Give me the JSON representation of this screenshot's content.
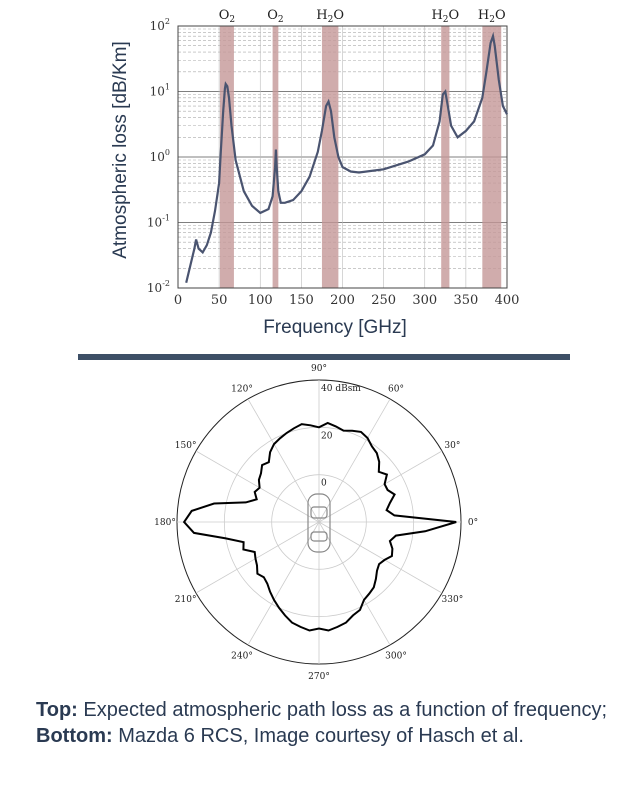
{
  "chart_data": [
    {
      "type": "line",
      "ylabel": "Atmospheric loss [dB/Km]",
      "xlabel": "Frequency [GHz]",
      "xlim": [
        0,
        400
      ],
      "ylim": [
        0.01,
        100
      ],
      "yscale": "log",
      "grid": true,
      "x_ticks": [
        "0",
        "50",
        "100",
        "150",
        "200",
        "250",
        "300",
        "350",
        "400"
      ],
      "x_tick_values": [
        0,
        50,
        100,
        150,
        200,
        250,
        300,
        350,
        400
      ],
      "y_ticks": [
        {
          "base": "10",
          "exp": "-2",
          "value": 0.01
        },
        {
          "base": "10",
          "exp": "-1",
          "value": 0.1
        },
        {
          "base": "10",
          "exp": "0",
          "value": 1
        },
        {
          "base": "10",
          "exp": "1",
          "value": 10
        },
        {
          "base": "10",
          "exp": "2",
          "value": 100
        }
      ],
      "bands": [
        {
          "label": "O",
          "sub": "2",
          "suffix": "",
          "from": 51,
          "to": 68
        },
        {
          "label": "O",
          "sub": "2",
          "suffix": "",
          "from": 115,
          "to": 122
        },
        {
          "label": "H",
          "sub": "2",
          "suffix": "O",
          "from": 175,
          "to": 195
        },
        {
          "label": "H",
          "sub": "2",
          "suffix": "O",
          "from": 320,
          "to": 330
        },
        {
          "label": "H",
          "sub": "2",
          "suffix": "O",
          "from": 370,
          "to": 393
        }
      ],
      "band_color": "#c49797",
      "line_color": "#4a5470",
      "series": [
        {
          "x": [
            10,
            15,
            20,
            22,
            25,
            30,
            35,
            40,
            45,
            50,
            52,
            55,
            57,
            58,
            60,
            62,
            65,
            70,
            80,
            90,
            100,
            110,
            115,
            118,
            119,
            120,
            122,
            125,
            130,
            140,
            150,
            160,
            170,
            175,
            180,
            183,
            186,
            190,
            195,
            200,
            210,
            220,
            250,
            280,
            300,
            310,
            318,
            322,
            325,
            328,
            332,
            340,
            350,
            360,
            370,
            375,
            380,
            383,
            385,
            390,
            395,
            400
          ],
          "y": [
            0.012,
            0.022,
            0.04,
            0.055,
            0.04,
            0.035,
            0.045,
            0.07,
            0.15,
            0.4,
            1.2,
            5,
            11,
            13,
            12,
            8,
            3,
            0.9,
            0.3,
            0.18,
            0.14,
            0.16,
            0.25,
            0.7,
            1.3,
            0.7,
            0.3,
            0.2,
            0.2,
            0.22,
            0.3,
            0.5,
            1.2,
            2.5,
            6,
            7,
            5,
            2,
            1,
            0.7,
            0.6,
            0.58,
            0.65,
            0.85,
            1.1,
            1.5,
            3.5,
            9,
            10,
            6,
            3,
            2,
            2.5,
            3.5,
            8,
            20,
            55,
            70,
            50,
            15,
            6,
            4.5
          ]
        }
      ]
    },
    {
      "type": "polar",
      "angle_labels": [
        {
          "deg": 0,
          "text": "0°"
        },
        {
          "deg": 30,
          "text": "30°"
        },
        {
          "deg": 60,
          "text": "60°"
        },
        {
          "deg": 90,
          "text": "90°"
        },
        {
          "deg": 120,
          "text": "120°"
        },
        {
          "deg": 150,
          "text": "150°"
        },
        {
          "deg": 180,
          "text": "180°"
        },
        {
          "deg": 210,
          "text": "210°"
        },
        {
          "deg": 240,
          "text": "240°"
        },
        {
          "deg": 270,
          "text": "270°"
        },
        {
          "deg": 300,
          "text": "300°"
        },
        {
          "deg": 330,
          "text": "330°"
        }
      ],
      "radial_ticks": [
        {
          "value": 0,
          "text": "0"
        },
        {
          "value": 20,
          "text": "20"
        },
        {
          "value": 40,
          "text": "40 dBsm"
        }
      ],
      "rlim": [
        -20,
        40
      ],
      "series": [
        {
          "angle_deg": [
            0,
            5,
            10,
            15,
            20,
            25,
            30,
            35,
            40,
            45,
            50,
            55,
            60,
            65,
            70,
            75,
            80,
            85,
            90,
            95,
            100,
            105,
            110,
            115,
            120,
            125,
            130,
            135,
            140,
            145,
            150,
            155,
            160,
            165,
            170,
            175,
            180,
            185,
            190,
            195,
            200,
            205,
            210,
            215,
            220,
            225,
            230,
            235,
            240,
            245,
            250,
            255,
            260,
            265,
            270,
            275,
            280,
            285,
            290,
            295,
            300,
            305,
            310,
            315,
            320,
            325,
            330,
            335,
            340,
            345,
            350,
            355
          ],
          "rcs_dbsm": [
            38,
            12,
            9,
            11,
            14,
            12,
            12,
            15,
            13,
            16,
            18,
            19,
            21,
            22,
            21,
            20,
            21,
            22,
            20,
            21,
            22,
            21,
            20,
            19,
            18,
            16,
            13,
            14,
            12,
            11,
            9,
            10,
            8,
            12,
            25,
            34,
            37,
            33,
            20,
            13,
            14,
            10,
            11,
            12,
            14,
            13,
            14,
            16,
            18,
            20,
            22,
            24,
            25,
            26,
            25,
            26,
            25,
            24,
            22,
            21,
            18,
            17,
            16,
            14,
            12,
            11,
            12,
            14,
            13,
            11,
            13,
            25
          ]
        }
      ]
    }
  ],
  "caption": {
    "top_bold": "Top:",
    "top_text": " Expected atmospheric path loss as a function of frequency;",
    "bottom_bold": "Bottom:",
    "bottom_text": " Mazda 6 RCS, Image courtesy of Hasch et al."
  }
}
